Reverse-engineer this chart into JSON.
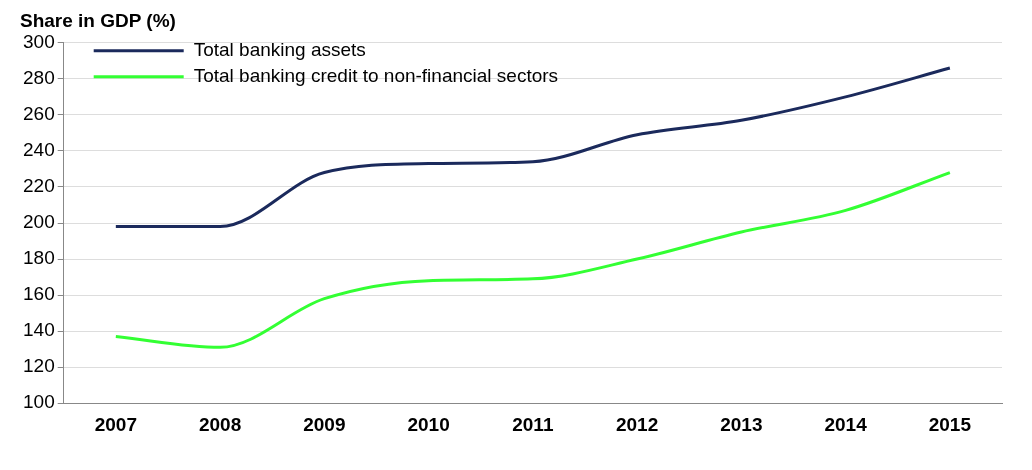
{
  "chart_data": {
    "type": "line",
    "ylabel": "Share in GDP (%)",
    "categories": [
      "2007",
      "2008",
      "2009",
      "2010",
      "2011",
      "2012",
      "2013",
      "2014",
      "2015"
    ],
    "series": [
      {
        "name": "Total banking assets",
        "color": "#1b2a5c",
        "values": [
          198,
          198,
          228,
          233,
          234,
          249,
          257,
          270,
          286
        ]
      },
      {
        "name": "Total banking credit to non-financial sectors",
        "color": "#33ff33",
        "values": [
          137,
          131,
          158,
          168,
          169,
          180,
          195,
          207,
          228
        ]
      }
    ],
    "ylim": [
      100,
      300
    ],
    "yticks": [
      100,
      120,
      140,
      160,
      180,
      200,
      220,
      240,
      260,
      280,
      300
    ],
    "grid": "y",
    "legend": "top left",
    "marker": "none",
    "line_style": "solid"
  }
}
